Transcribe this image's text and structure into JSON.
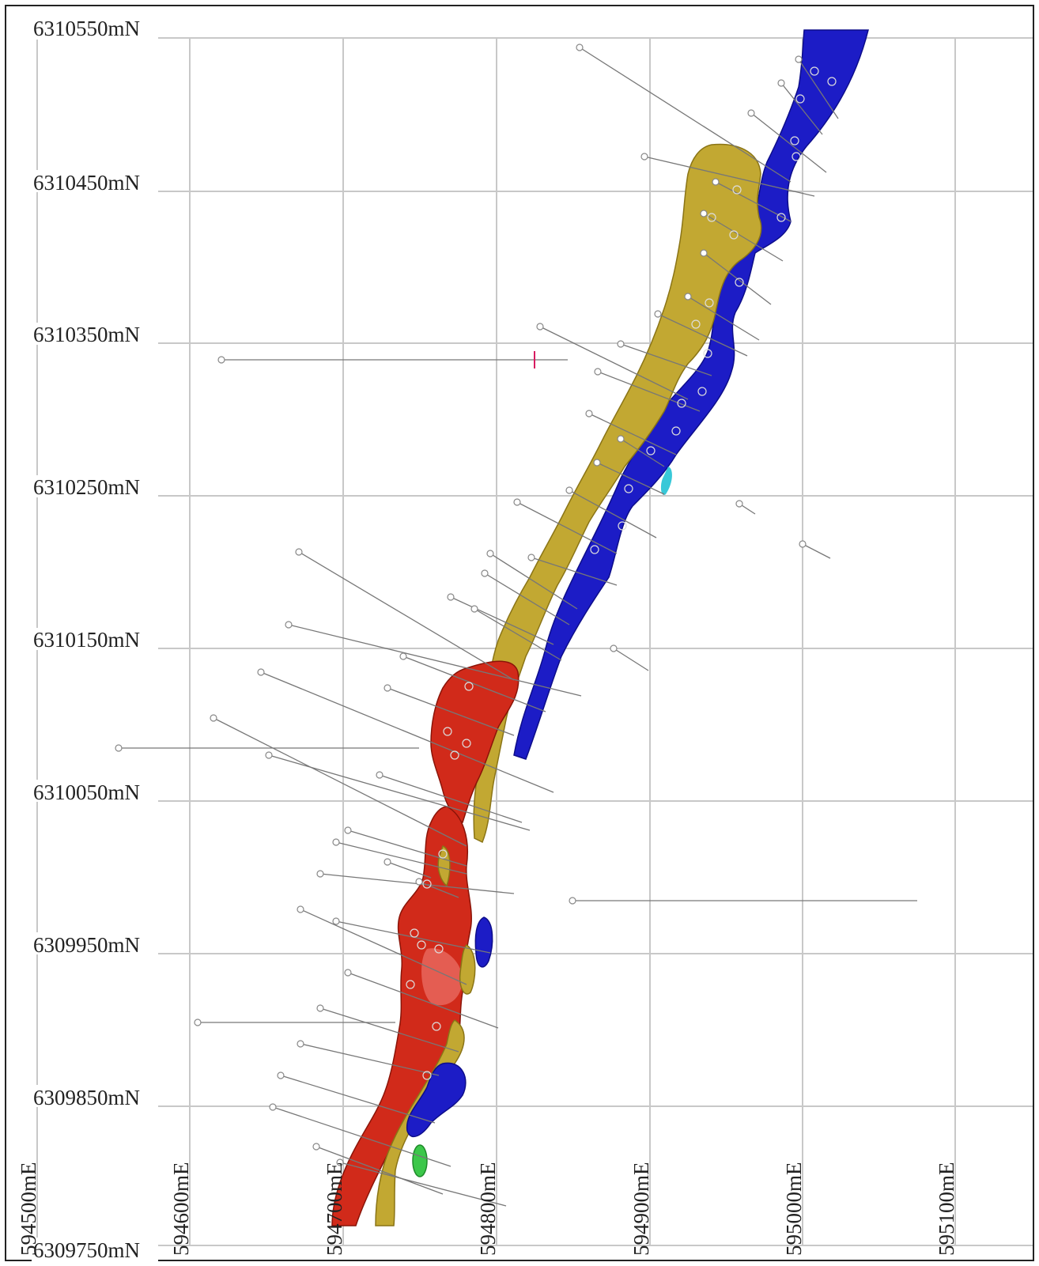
{
  "grid": {
    "northing_labels": [
      "6310550mN",
      "6310450mN",
      "6310350mN",
      "6310250mN",
      "6310150mN",
      "6310050mN",
      "6309950mN",
      "6309850mN",
      "6309750mN"
    ],
    "easting_labels": [
      "594500mE",
      "594600mE",
      "594700mE",
      "594800mE",
      "594900mE",
      "595000mE",
      "595100mE"
    ]
  },
  "colors": {
    "gold_zone": "#c2a832",
    "blue_zone": "#1c1cc6",
    "red_zone": "#d12a1a",
    "green_zone": "#3cc74a",
    "cyan_zone": "#38c8d8",
    "grid": "#c8c8c8",
    "drill_trace": "#777777"
  }
}
